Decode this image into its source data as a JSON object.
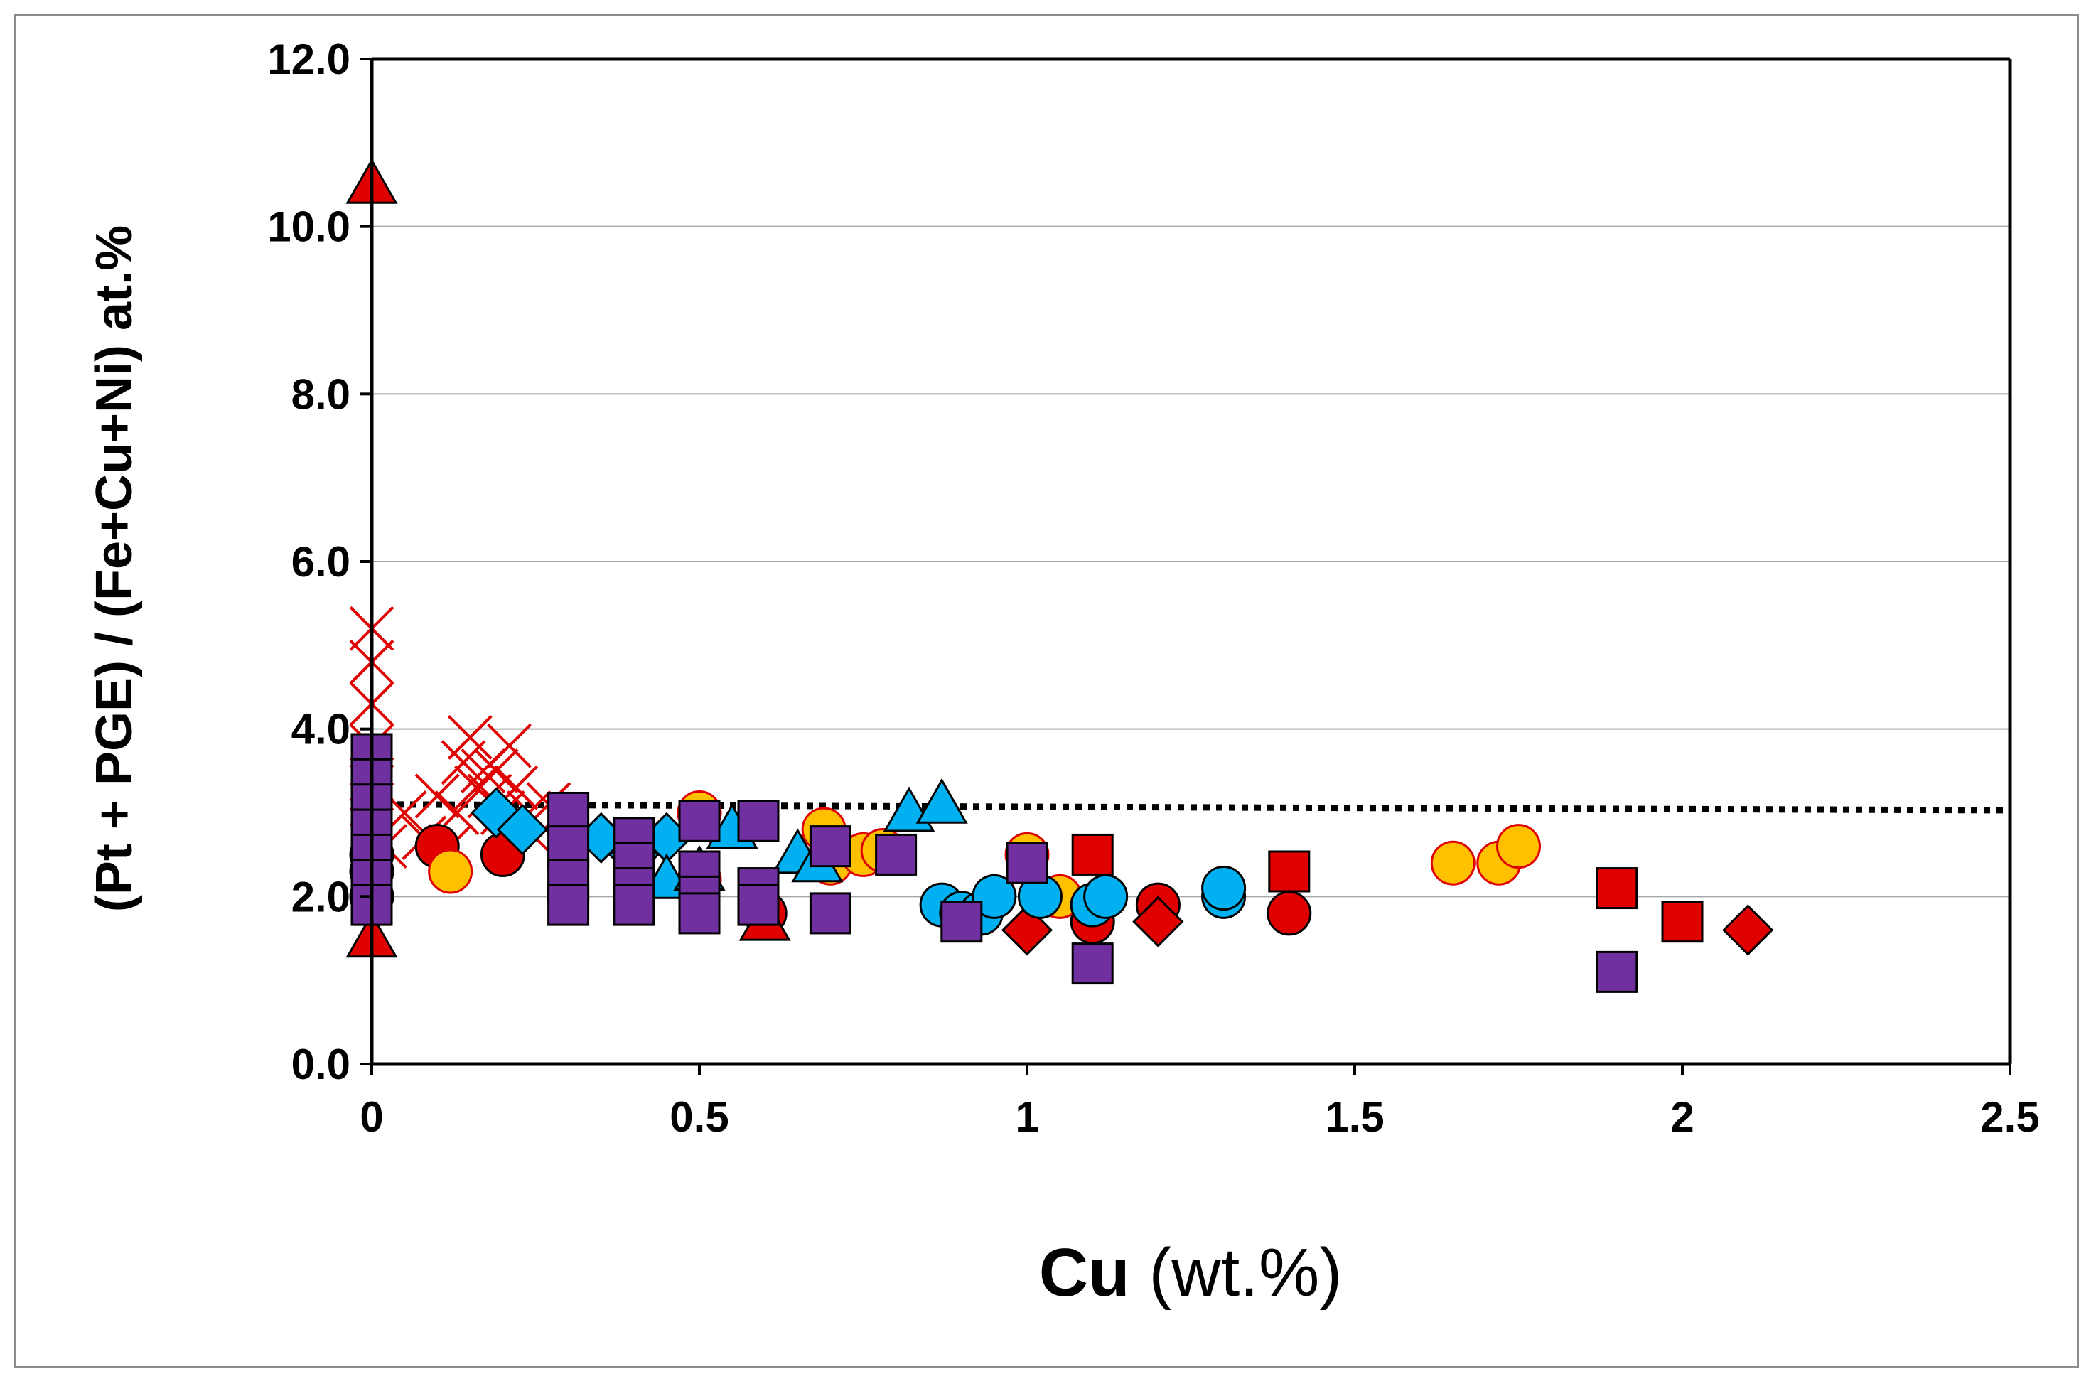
{
  "chart_data": {
    "type": "scatter",
    "title": "",
    "xlabel_bold": "Cu",
    "xlabel_rest": " (wt.%)",
    "ylabel": "(Pt + PGE) / (Fe+Cu+Ni) at.%",
    "xlim": [
      0,
      2.5
    ],
    "ylim": [
      0,
      12
    ],
    "x_ticks": [
      "0",
      "0.5",
      "1",
      "1.5",
      "2",
      "2.5"
    ],
    "x_tick_values": [
      0,
      0.5,
      1,
      1.5,
      2,
      2.5
    ],
    "y_ticks": [
      "0.0",
      "2.0",
      "4.0",
      "6.0",
      "8.0",
      "10.0",
      "12.0"
    ],
    "y_tick_values": [
      0,
      2,
      4,
      6,
      8,
      10,
      12
    ],
    "grid": "horizontal",
    "colors": {
      "red": "#e00000",
      "yellow": "#ffc000",
      "blue": "#00b0f0",
      "purple": "#7030a0",
      "axis": "#000000",
      "grid": "#a6a6a6"
    },
    "reference_line": {
      "style": "dotted",
      "points": [
        [
          0,
          3.1
        ],
        [
          2.5,
          3.03
        ]
      ]
    },
    "series": [
      {
        "name": "red-crosses",
        "marker": "x",
        "color": "#e00000",
        "points": [
          [
            0,
            5.2
          ],
          [
            0,
            4.8
          ],
          [
            0,
            4.3
          ],
          [
            0,
            3.8
          ],
          [
            0,
            3.4
          ],
          [
            0,
            3.1
          ],
          [
            0,
            2.8
          ],
          [
            0.02,
            2.6
          ],
          [
            0.05,
            3.0
          ],
          [
            0.08,
            2.7
          ],
          [
            0.1,
            3.2
          ],
          [
            0.12,
            2.6
          ],
          [
            0.13,
            3.0
          ],
          [
            0.14,
            3.6
          ],
          [
            0.15,
            3.9
          ],
          [
            0.16,
            3.3
          ],
          [
            0.17,
            3.5
          ],
          [
            0.18,
            3.2
          ],
          [
            0.19,
            3.5
          ],
          [
            0.2,
            3.0
          ],
          [
            0.21,
            3.8
          ],
          [
            0.22,
            3.3
          ],
          [
            0.24,
            3.0
          ],
          [
            0.25,
            2.7
          ],
          [
            0.27,
            3.1
          ]
        ]
      },
      {
        "name": "red-circles",
        "marker": "circle",
        "color": "#e00000",
        "points": [
          [
            0,
            2.5
          ],
          [
            0,
            2.3
          ],
          [
            0,
            2.0
          ],
          [
            0.1,
            2.6
          ],
          [
            0.2,
            2.5
          ],
          [
            0.6,
            1.8
          ],
          [
            1.1,
            1.7
          ],
          [
            1.2,
            1.9
          ],
          [
            1.4,
            1.8
          ]
        ]
      },
      {
        "name": "red-triangles",
        "marker": "triangle",
        "color": "#e00000",
        "points": [
          [
            0,
            10.5
          ],
          [
            0,
            1.5
          ],
          [
            0.6,
            1.7
          ]
        ]
      },
      {
        "name": "red-squares",
        "marker": "square",
        "color": "#e00000",
        "points": [
          [
            1.1,
            2.5
          ],
          [
            1.4,
            2.3
          ],
          [
            1.9,
            2.1
          ],
          [
            2.0,
            1.7
          ]
        ]
      },
      {
        "name": "red-diamonds",
        "marker": "diamond",
        "color": "#e00000",
        "points": [
          [
            1.0,
            1.6
          ],
          [
            1.2,
            1.7
          ],
          [
            2.1,
            1.6
          ]
        ]
      },
      {
        "name": "yellow-circles",
        "marker": "circle",
        "color": "#ffc000",
        "points": [
          [
            0.12,
            2.3
          ],
          [
            0.5,
            3.0
          ],
          [
            0.5,
            2.2
          ],
          [
            0.69,
            2.8
          ],
          [
            0.7,
            2.4
          ],
          [
            0.75,
            2.5
          ],
          [
            0.78,
            2.55
          ],
          [
            1.0,
            2.5
          ],
          [
            1.05,
            2.0
          ],
          [
            1.65,
            2.4
          ],
          [
            1.72,
            2.4
          ],
          [
            1.75,
            2.6
          ]
        ]
      },
      {
        "name": "blue-diamonds",
        "marker": "diamond",
        "color": "#00b0f0",
        "points": [
          [
            0.19,
            3.0
          ],
          [
            0.23,
            2.8
          ],
          [
            0.35,
            2.7
          ],
          [
            0.4,
            2.5
          ],
          [
            0.45,
            2.7
          ]
        ]
      },
      {
        "name": "blue-triangles",
        "marker": "triangle",
        "color": "#00b0f0",
        "points": [
          [
            0.45,
            2.2
          ],
          [
            0.5,
            2.3
          ],
          [
            0.55,
            2.8
          ],
          [
            0.65,
            2.5
          ],
          [
            0.68,
            2.4
          ],
          [
            0.82,
            3.0
          ],
          [
            0.87,
            3.1
          ]
        ]
      },
      {
        "name": "blue-circles",
        "marker": "circle",
        "color": "#00b0f0",
        "points": [
          [
            0.87,
            1.9
          ],
          [
            0.9,
            1.8
          ],
          [
            0.93,
            1.8
          ],
          [
            0.95,
            2.0
          ],
          [
            1.02,
            2.0
          ],
          [
            1.1,
            1.9
          ],
          [
            1.12,
            2.0
          ],
          [
            1.3,
            2.0
          ],
          [
            1.3,
            2.1
          ]
        ]
      },
      {
        "name": "purple-squares",
        "marker": "square",
        "color": "#7030a0",
        "points": [
          [
            0,
            3.7
          ],
          [
            0,
            3.4
          ],
          [
            0,
            3.1
          ],
          [
            0,
            2.8
          ],
          [
            0,
            2.5
          ],
          [
            0,
            2.2
          ],
          [
            0,
            1.9
          ],
          [
            0.3,
            3.0
          ],
          [
            0.3,
            2.6
          ],
          [
            0.3,
            2.2
          ],
          [
            0.3,
            1.9
          ],
          [
            0.4,
            2.7
          ],
          [
            0.4,
            2.4
          ],
          [
            0.4,
            2.1
          ],
          [
            0.4,
            1.9
          ],
          [
            0.5,
            2.9
          ],
          [
            0.5,
            2.3
          ],
          [
            0.5,
            2.0
          ],
          [
            0.5,
            1.8
          ],
          [
            0.59,
            2.9
          ],
          [
            0.59,
            2.1
          ],
          [
            0.59,
            1.9
          ],
          [
            0.7,
            2.6
          ],
          [
            0.7,
            1.8
          ],
          [
            0.8,
            2.5
          ],
          [
            0.9,
            1.7
          ],
          [
            1.0,
            2.4
          ],
          [
            1.1,
            1.2
          ],
          [
            1.9,
            1.1
          ]
        ]
      }
    ]
  }
}
